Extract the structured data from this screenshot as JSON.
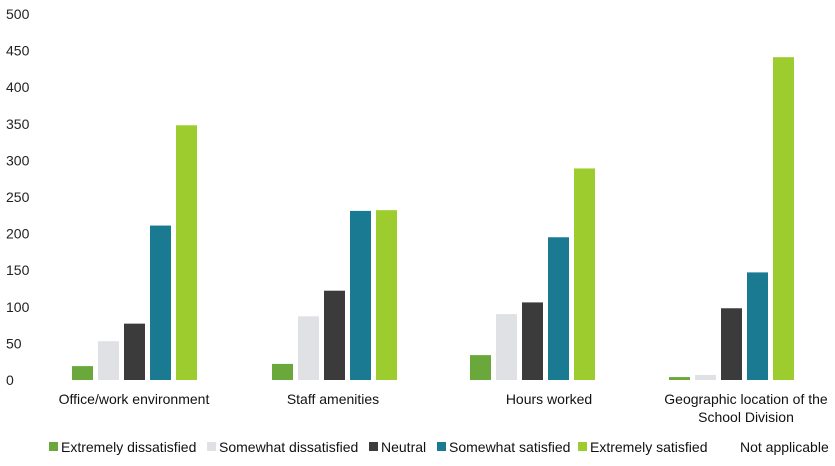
{
  "chart_data": {
    "type": "bar",
    "categories": [
      "Office/work environment",
      "Staff amenities",
      "Hours worked",
      "Geographic location of the School Division"
    ],
    "category_lines": [
      [
        "Office/work environment"
      ],
      [
        "Staff amenities"
      ],
      [
        "Hours worked"
      ],
      [
        "Geographic location of the",
        "School Division"
      ]
    ],
    "series": [
      {
        "name": "Extremely dissatisfied",
        "color": "#6aa83c",
        "values": [
          19,
          22,
          34,
          4
        ]
      },
      {
        "name": "Somewhat dissatisfied",
        "color": "#dfe1e5",
        "values": [
          53,
          87,
          90,
          7
        ]
      },
      {
        "name": "Neutral",
        "color": "#3b3b3b",
        "values": [
          77,
          122,
          106,
          98
        ]
      },
      {
        "name": "Somewhat satisfied",
        "color": "#1a7a92",
        "values": [
          211,
          231,
          195,
          147
        ]
      },
      {
        "name": "Extremely satisfied",
        "color": "#9ccc2d",
        "values": [
          348,
          232,
          289,
          441
        ]
      },
      {
        "name": "Not applicable",
        "color": "#ffffff",
        "values": [
          0,
          0,
          0,
          0
        ]
      }
    ],
    "ylim": [
      0,
      500
    ],
    "yticks": [
      0,
      50,
      100,
      150,
      200,
      250,
      300,
      350,
      400,
      450,
      500
    ],
    "grid": false,
    "legend_position": "bottom",
    "title": "",
    "xlabel": "",
    "ylabel": ""
  }
}
